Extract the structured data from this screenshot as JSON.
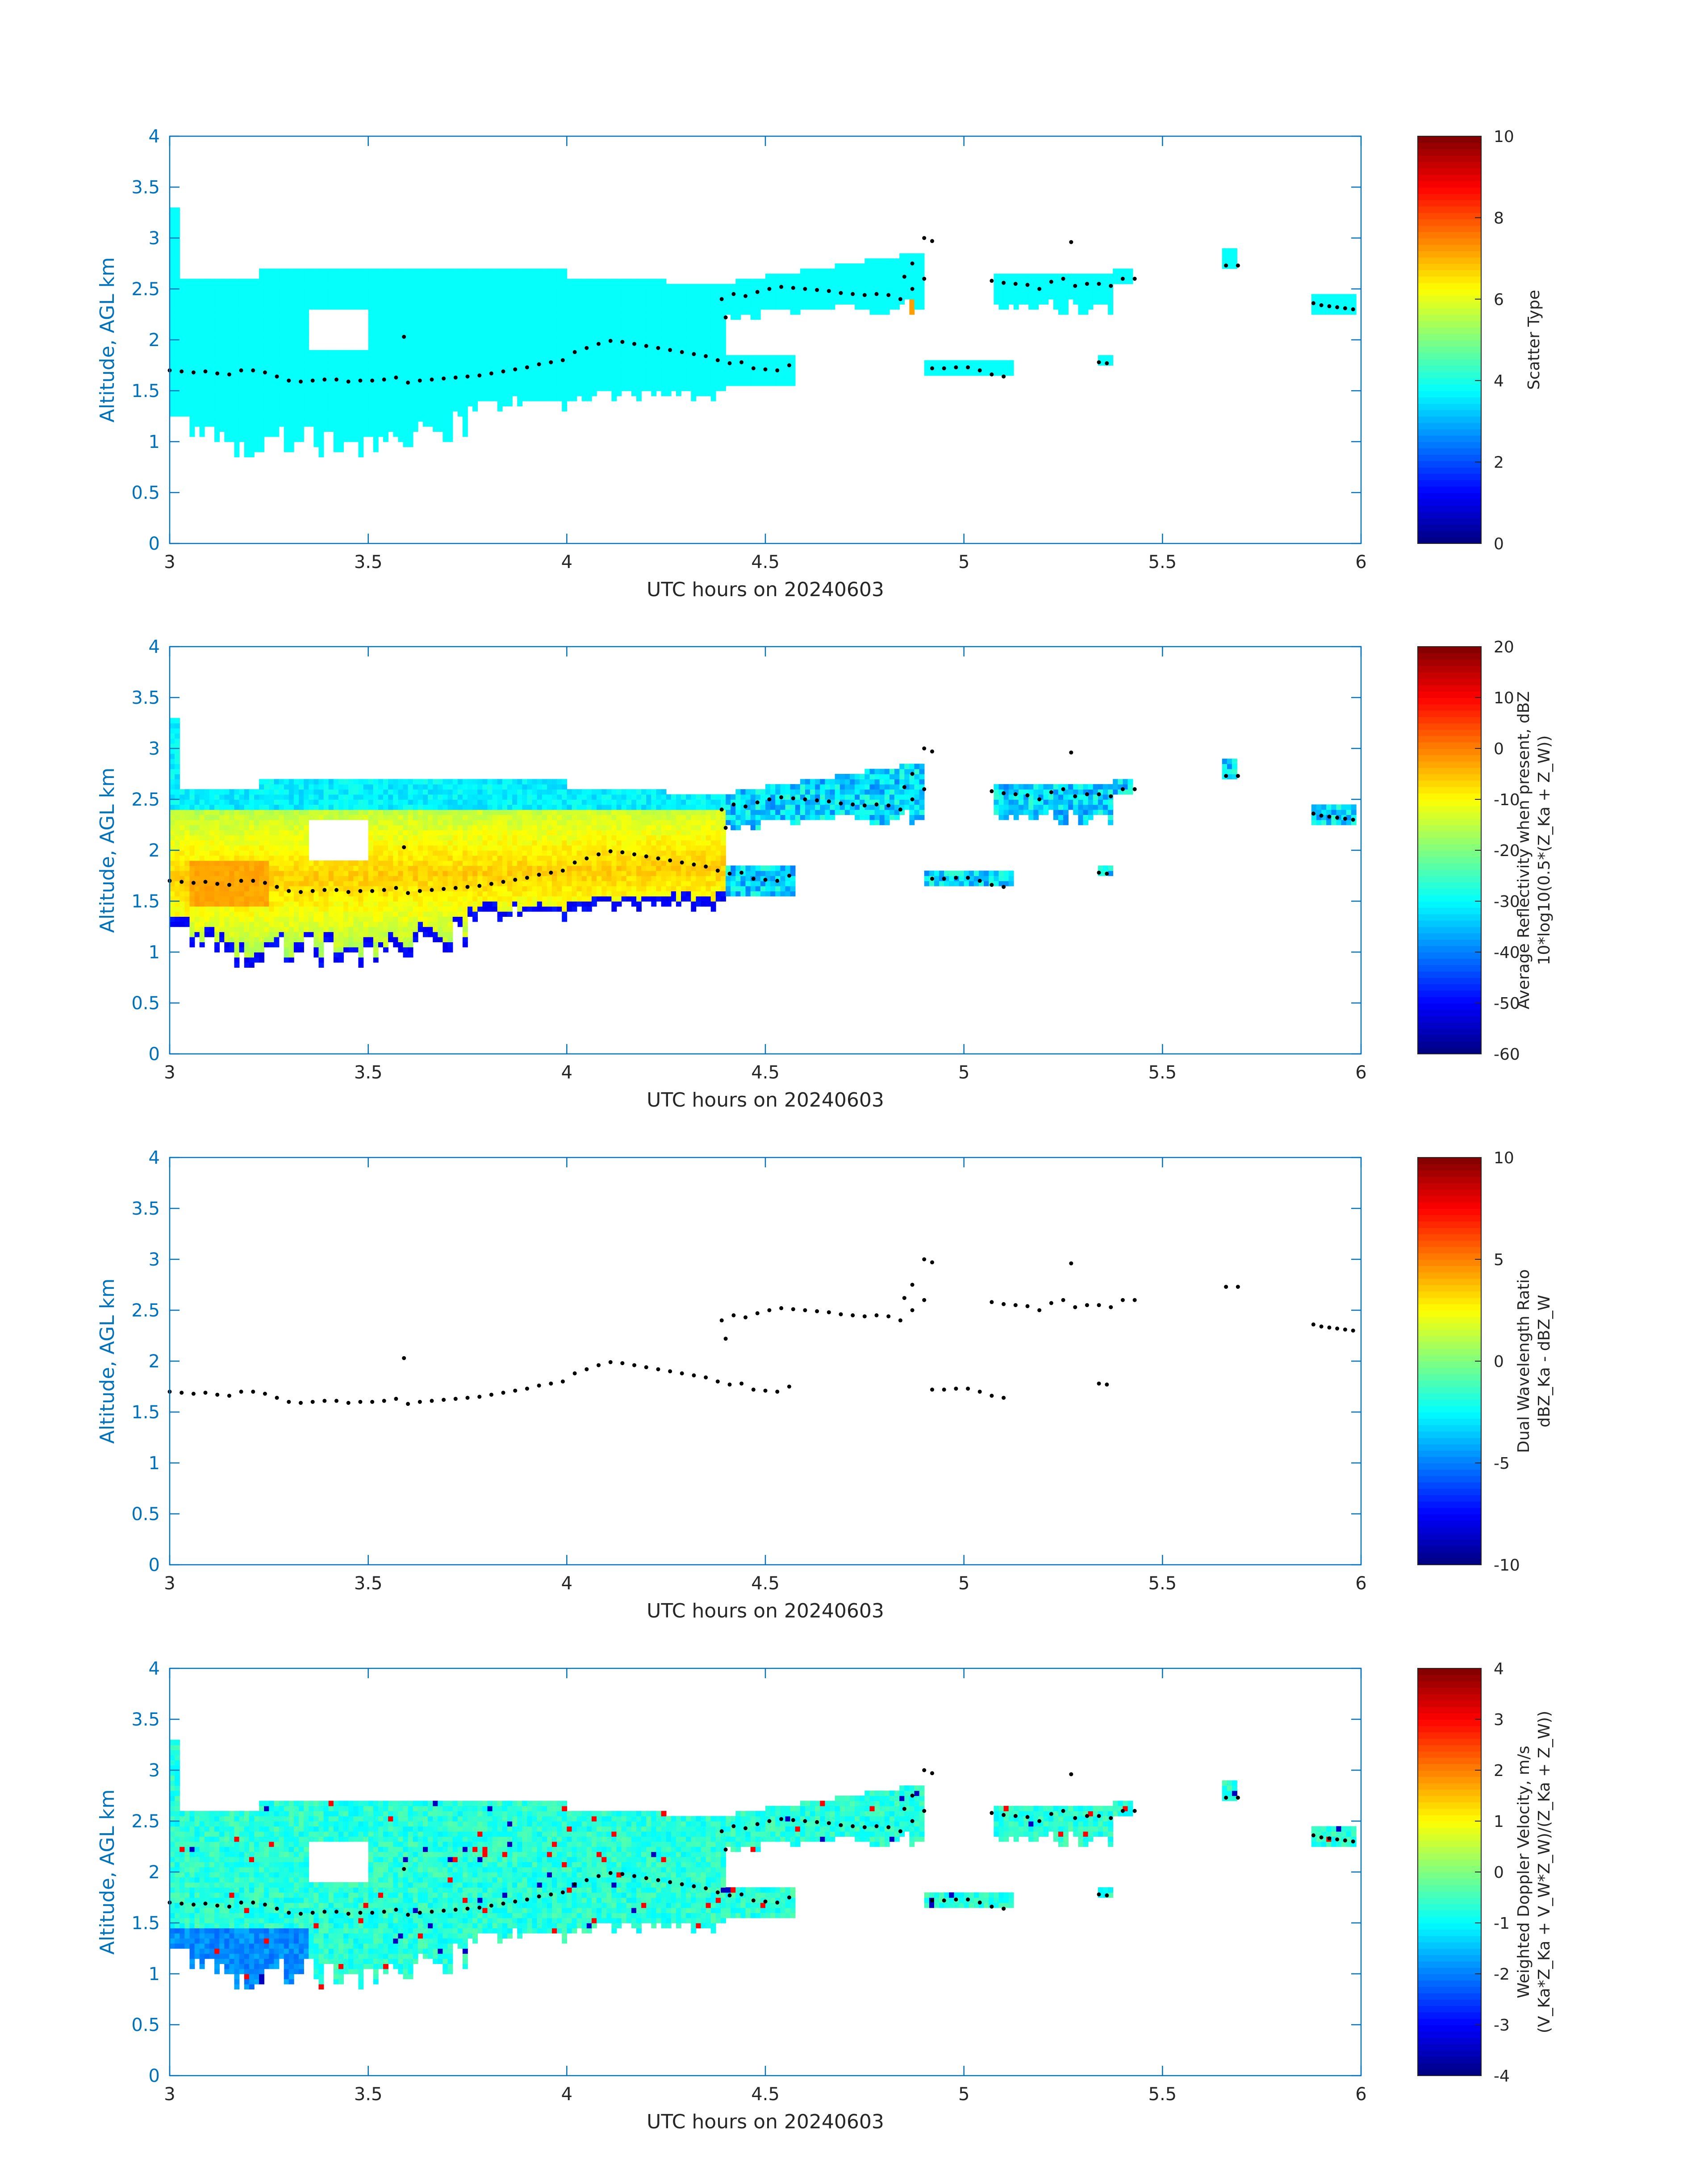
{
  "figure": {
    "date_label": "UTC hours on 20240603"
  },
  "chart_data": [
    {
      "type": "heatmap",
      "xlabel": "UTC hours on 20240603",
      "ylabel": "Altitude, AGL km",
      "xlim": [
        3,
        6
      ],
      "ylim": [
        0,
        4
      ],
      "xticks": [
        "3",
        "3.5",
        "4",
        "4.5",
        "5",
        "5.5",
        "6"
      ],
      "yticks": [
        "0",
        "0.5",
        "1",
        "1.5",
        "2",
        "2.5",
        "3",
        "3.5",
        "4"
      ],
      "colorbar": {
        "label_lines": [
          "Scatter Type"
        ],
        "range": [
          0,
          10
        ],
        "ticks": [
          "0",
          "2",
          "4",
          "6",
          "8",
          "10"
        ]
      },
      "field": "scatter_type",
      "dominant_value": 3.8,
      "notable_values": [
        {
          "x": 4.86,
          "y_range": [
            2.0,
            2.4
          ],
          "value": 7.2
        }
      ],
      "colormap": "jet",
      "grid": false,
      "legend": "none"
    },
    {
      "type": "heatmap",
      "xlabel": "UTC hours on 20240603",
      "ylabel": "Altitude, AGL km",
      "xlim": [
        3,
        6
      ],
      "ylim": [
        0,
        4
      ],
      "xticks": [
        "3",
        "3.5",
        "4",
        "4.5",
        "5",
        "5.5",
        "6"
      ],
      "yticks": [
        "0",
        "0.5",
        "1",
        "1.5",
        "2",
        "2.5",
        "3",
        "3.5",
        "4"
      ],
      "colorbar": {
        "label_lines": [
          "Average Reflectivity when present, dBZ",
          "10*log10(0.5*(Z_Ka + Z_W))"
        ],
        "range": [
          -60,
          20
        ],
        "ticks": [
          "-60",
          "-50",
          "-40",
          "-30",
          "-20",
          "-10",
          "0",
          "10",
          "20"
        ]
      },
      "field": "reflectivity",
      "value_range_shown": [
        -55,
        0
      ],
      "max_region": {
        "x": [
          3.05,
          3.25
        ],
        "y": [
          1.45,
          1.9
        ],
        "value": -4
      },
      "colormap": "jet",
      "grid": false,
      "legend": "none"
    },
    {
      "type": "scatter",
      "xlabel": "UTC hours on 20240603",
      "ylabel": "Altitude, AGL km",
      "xlim": [
        3,
        6
      ],
      "ylim": [
        0,
        4
      ],
      "xticks": [
        "3",
        "3.5",
        "4",
        "4.5",
        "5",
        "5.5",
        "6"
      ],
      "yticks": [
        "0",
        "0.5",
        "1",
        "1.5",
        "2",
        "2.5",
        "3",
        "3.5",
        "4"
      ],
      "colorbar": {
        "label_lines": [
          "Dual Wavelength Ratio",
          "dBZ_Ka - dBZ_W"
        ],
        "range": [
          -10,
          10
        ],
        "ticks": [
          "-10",
          "-5",
          "0",
          "5",
          "10"
        ]
      },
      "field": "dual_wavelength_ratio",
      "note_no_field_data": true,
      "colormap": "jet",
      "grid": false,
      "legend": "none"
    },
    {
      "type": "heatmap",
      "xlabel": "UTC hours on 20240603",
      "ylabel": "Altitude, AGL km",
      "xlim": [
        3,
        6
      ],
      "ylim": [
        0,
        4
      ],
      "xticks": [
        "3",
        "3.5",
        "4",
        "4.5",
        "5",
        "5.5",
        "6"
      ],
      "yticks": [
        "0",
        "0.5",
        "1",
        "1.5",
        "2",
        "2.5",
        "3",
        "3.5",
        "4"
      ],
      "colorbar": {
        "label_lines": [
          "Weighted Doppler Velocity, m/s",
          "(V_Ka*Z_Ka + V_W*Z_W)/(Z_Ka + Z_W))"
        ],
        "range": [
          -4,
          4
        ],
        "ticks": [
          "-4",
          "-3",
          "-2",
          "-1",
          "0",
          "1",
          "2",
          "3",
          "4"
        ]
      },
      "field": "doppler_velocity",
      "value_range_shown": [
        -3.5,
        3.5
      ],
      "typical_value": -0.7,
      "colormap": "jet",
      "grid": false,
      "legend": "none"
    }
  ],
  "cloud_base": {
    "description_series": "black dot markers overlaid on every panel",
    "series": [
      {
        "name": "",
        "x": [
          3.0,
          3.03,
          3.06,
          3.09,
          3.12,
          3.15,
          3.18,
          3.21,
          3.24,
          3.27,
          3.3,
          3.33,
          3.36,
          3.39,
          3.42,
          3.45,
          3.48,
          3.51,
          3.54,
          3.57,
          3.6,
          3.63,
          3.66,
          3.69,
          3.72,
          3.75,
          3.78,
          3.81,
          3.84,
          3.87,
          3.9,
          3.93,
          3.96,
          3.99,
          4.02,
          4.05,
          4.08,
          4.11,
          4.14,
          4.17,
          4.2,
          4.23,
          4.26,
          4.29,
          4.32,
          4.35,
          4.38,
          4.41,
          4.44,
          4.47,
          4.5,
          4.53,
          4.56
        ],
        "y": [
          1.7,
          1.69,
          1.68,
          1.69,
          1.67,
          1.66,
          1.7,
          1.7,
          1.68,
          1.64,
          1.6,
          1.59,
          1.6,
          1.61,
          1.61,
          1.59,
          1.6,
          1.6,
          1.61,
          1.63,
          1.58,
          1.6,
          1.61,
          1.62,
          1.63,
          1.64,
          1.65,
          1.67,
          1.69,
          1.71,
          1.73,
          1.76,
          1.78,
          1.8,
          1.88,
          1.92,
          1.96,
          1.99,
          1.98,
          1.96,
          1.94,
          1.92,
          1.9,
          1.88,
          1.86,
          1.84,
          1.8,
          1.77,
          1.78,
          1.72,
          1.71,
          1.7,
          1.75
        ]
      },
      {
        "name": "",
        "x": [
          4.39,
          4.42,
          4.45,
          4.48,
          4.51,
          4.54,
          4.57,
          4.6,
          4.63,
          4.66,
          4.69,
          4.72,
          4.75,
          4.78,
          4.81,
          4.84,
          4.87,
          4.9
        ],
        "y": [
          2.4,
          2.45,
          2.43,
          2.47,
          2.5,
          2.52,
          2.51,
          2.5,
          2.49,
          2.48,
          2.46,
          2.45,
          2.44,
          2.45,
          2.44,
          2.4,
          2.5,
          2.6
        ]
      },
      {
        "name": "",
        "x": [
          4.92,
          4.95,
          4.98,
          5.01,
          5.04,
          5.07,
          5.1
        ],
        "y": [
          1.72,
          1.72,
          1.73,
          1.73,
          1.7,
          1.66,
          1.64
        ]
      },
      {
        "name": "",
        "x": [
          5.07,
          5.1,
          5.13,
          5.16,
          5.19,
          5.22,
          5.25,
          5.28,
          5.31,
          5.34,
          5.37,
          5.4,
          5.43
        ],
        "y": [
          2.58,
          2.56,
          2.55,
          2.54,
          2.5,
          2.57,
          2.6,
          2.53,
          2.55,
          2.55,
          2.53,
          2.6,
          2.6
        ]
      },
      {
        "name": "",
        "x": [
          5.88,
          5.9,
          5.92,
          5.94,
          5.96,
          5.98
        ],
        "y": [
          2.36,
          2.34,
          2.33,
          2.32,
          2.31,
          2.3
        ]
      },
      {
        "name": "",
        "x": [
          3.59,
          4.9,
          4.92,
          5.27,
          5.34,
          5.36,
          5.66,
          5.69,
          4.4,
          4.87,
          4.85
        ],
        "y": [
          2.03,
          3.0,
          2.97,
          2.96,
          1.78,
          1.77,
          2.73,
          2.73,
          2.22,
          2.75,
          2.62
        ]
      }
    ]
  }
}
